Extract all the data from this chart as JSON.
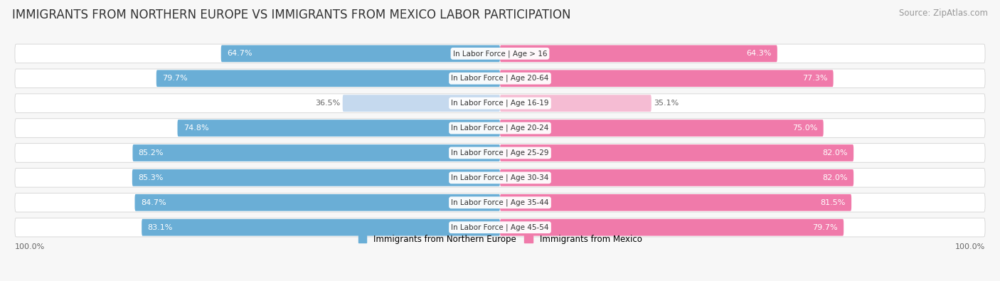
{
  "title": "IMMIGRANTS FROM NORTHERN EUROPE VS IMMIGRANTS FROM MEXICO LABOR PARTICIPATION",
  "source": "Source: ZipAtlas.com",
  "categories": [
    "In Labor Force | Age > 16",
    "In Labor Force | Age 20-64",
    "In Labor Force | Age 16-19",
    "In Labor Force | Age 20-24",
    "In Labor Force | Age 25-29",
    "In Labor Force | Age 30-34",
    "In Labor Force | Age 35-44",
    "In Labor Force | Age 45-54"
  ],
  "northern_europe": [
    64.7,
    79.7,
    36.5,
    74.8,
    85.2,
    85.3,
    84.7,
    83.1
  ],
  "mexico": [
    64.3,
    77.3,
    35.1,
    75.0,
    82.0,
    82.0,
    81.5,
    79.7
  ],
  "color_north": "#6aaed6",
  "color_mexico": "#f07aaa",
  "color_north_light": "#c5d9ee",
  "color_mexico_light": "#f5bcd3",
  "color_bg_pill": "#e8e8ec",
  "bar_height": 0.68,
  "fig_bg": "#f7f7f7",
  "legend_color_north": "#6aaed6",
  "legend_color_mexico": "#f07aaa",
  "title_fontsize": 12,
  "label_fontsize": 8,
  "value_fontsize": 8,
  "source_fontsize": 8.5,
  "cat_fontsize": 7.5
}
